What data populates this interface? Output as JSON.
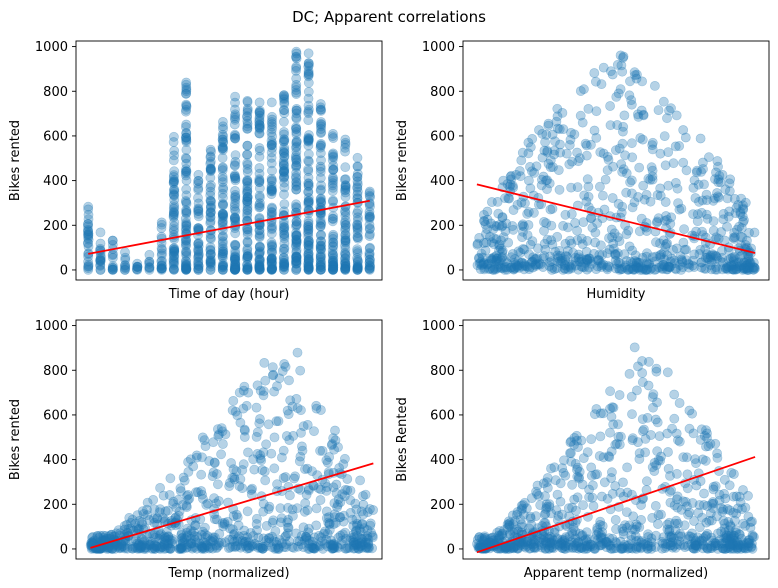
{
  "suptitle": "DC; Apparent correlations",
  "chart_data": [
    {
      "type": "scatter",
      "title": "",
      "xlabel": "Time of day (hour)",
      "ylabel": "Bikes rented",
      "xlim": [
        -1,
        24
      ],
      "ylim": [
        -45,
        1025
      ],
      "yticks": [
        0,
        200,
        400,
        600,
        800,
        1000
      ],
      "xticks_visible": false,
      "point_color": "#1f77b4",
      "line_color": "#ff0000",
      "columns": [
        {
          "x": 0,
          "min": 0,
          "max": 283
        },
        {
          "x": 1,
          "min": 0,
          "max": 168
        },
        {
          "x": 2,
          "min": 0,
          "max": 132
        },
        {
          "x": 3,
          "min": 0,
          "max": 79
        },
        {
          "x": 4,
          "min": 0,
          "max": 28
        },
        {
          "x": 5,
          "min": 0,
          "max": 68
        },
        {
          "x": 6,
          "min": 0,
          "max": 213
        },
        {
          "x": 7,
          "min": 0,
          "max": 596
        },
        {
          "x": 8,
          "min": 0,
          "max": 839
        },
        {
          "x": 9,
          "min": 0,
          "max": 426
        },
        {
          "x": 10,
          "min": 0,
          "max": 539
        },
        {
          "x": 11,
          "min": 0,
          "max": 663
        },
        {
          "x": 12,
          "min": 0,
          "max": 776
        },
        {
          "x": 13,
          "min": 0,
          "max": 757
        },
        {
          "x": 14,
          "min": 0,
          "max": 750
        },
        {
          "x": 15,
          "min": 0,
          "max": 750
        },
        {
          "x": 16,
          "min": 0,
          "max": 783
        },
        {
          "x": 17,
          "min": 0,
          "max": 977
        },
        {
          "x": 18,
          "min": 0,
          "max": 970
        },
        {
          "x": 19,
          "min": 0,
          "max": 743
        },
        {
          "x": 20,
          "min": 0,
          "max": 609
        },
        {
          "x": 21,
          "min": 0,
          "max": 584
        },
        {
          "x": 22,
          "min": 0,
          "max": 502
        },
        {
          "x": 23,
          "min": 0,
          "max": 351
        }
      ],
      "trend": {
        "x": [
          0,
          23
        ],
        "y": [
          72,
          310
        ]
      }
    },
    {
      "type": "scatter",
      "title": "",
      "xlabel": "Humidity",
      "ylabel": "Bikes rented",
      "xlim": [
        -0.05,
        1.05
      ],
      "ylim": [
        -45,
        1025
      ],
      "yticks": [
        0,
        200,
        400,
        600,
        800,
        1000
      ],
      "xticks_visible": false,
      "point_color": "#1f77b4",
      "line_color": "#ff0000",
      "cloud": {
        "x_start": 0.0,
        "x_end": 1.0,
        "peak_x": 0.5,
        "peak_y": 977
      },
      "trend": {
        "x": [
          0,
          1
        ],
        "y": [
          383,
          76
        ]
      }
    },
    {
      "type": "scatter",
      "title": "",
      "xlabel": "Temp (normalized)",
      "ylabel": "Bikes rented",
      "xlim": [
        -0.03,
        1.03
      ],
      "ylim": [
        -45,
        1025
      ],
      "yticks": [
        0,
        200,
        400,
        600,
        800,
        1000
      ],
      "xticks_visible": false,
      "point_color": "#1f77b4",
      "line_color": "#ff0000",
      "cloud": {
        "x_start": 0.02,
        "x_end": 1.0,
        "peak_x": 0.7,
        "peak_y": 977
      },
      "trend": {
        "x": [
          0.02,
          1.0
        ],
        "y": [
          5,
          383
        ]
      }
    },
    {
      "type": "scatter",
      "title": "",
      "xlabel": "Apparent temp (normalized)",
      "ylabel": "Bikes Rented",
      "xlim": [
        -0.05,
        1.05
      ],
      "ylim": [
        -45,
        1025
      ],
      "yticks": [
        0,
        200,
        400,
        600,
        800,
        1000
      ],
      "xticks_visible": false,
      "point_color": "#1f77b4",
      "line_color": "#ff0000",
      "cloud": {
        "x_start": 0.0,
        "x_end": 1.0,
        "peak_x": 0.6,
        "peak_y": 977
      },
      "trend": {
        "x": [
          0,
          1
        ],
        "y": [
          -15,
          412
        ]
      }
    }
  ]
}
